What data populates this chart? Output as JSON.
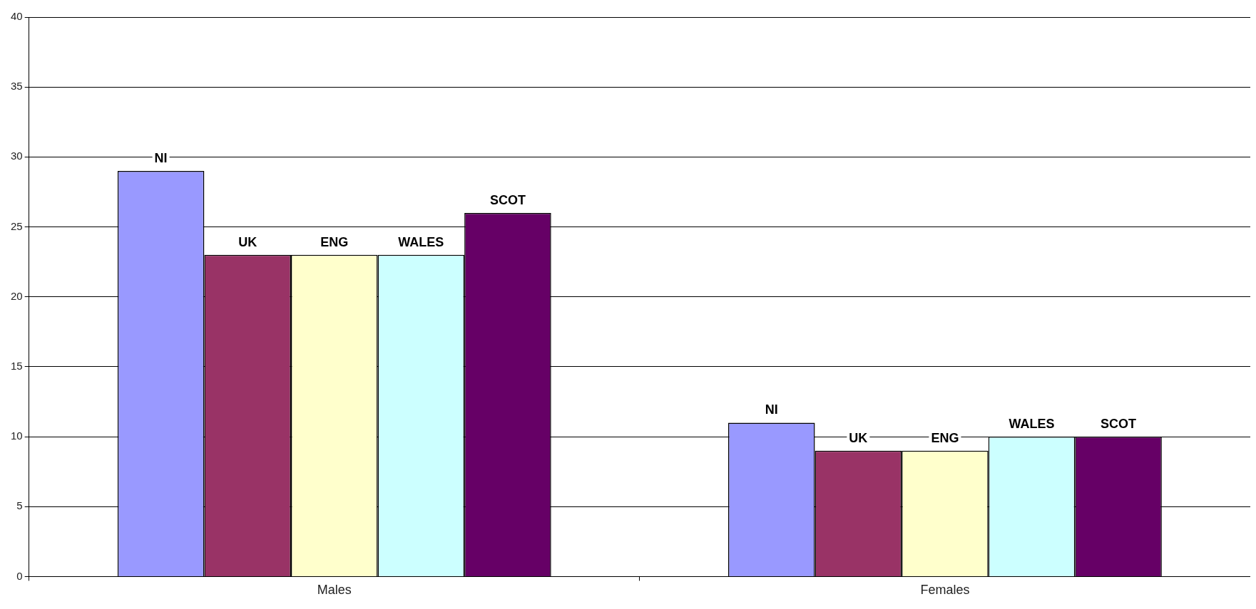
{
  "chart_data": {
    "type": "bar",
    "categories": [
      "Males",
      "Females"
    ],
    "series": [
      {
        "name": "NI",
        "color": "#9999ff",
        "values": [
          29,
          11
        ]
      },
      {
        "name": "UK",
        "color": "#993366",
        "values": [
          23,
          9
        ]
      },
      {
        "name": "ENG",
        "color": "#ffffcc",
        "values": [
          23,
          9
        ]
      },
      {
        "name": "WALES",
        "color": "#ccffff",
        "values": [
          23,
          10
        ]
      },
      {
        "name": "SCOT",
        "color": "#660066",
        "values": [
          26,
          10
        ]
      }
    ],
    "ylim": [
      0,
      40
    ],
    "yticks": [
      0,
      5,
      10,
      15,
      20,
      25,
      30,
      35,
      40
    ],
    "grid": "y",
    "legend": false
  }
}
